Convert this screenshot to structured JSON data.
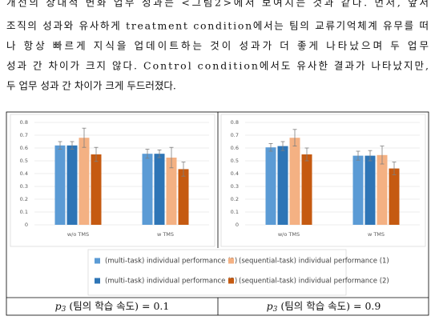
{
  "text_lines": [
    "개선의 상대적 변화 업무 성과는 <그림2>에서 보여지는 것과 같다. 먼저, 앞서",
    "조직의 성과와 유사하게 treatment condition에서는 팀의 교류기억체계 유무를 떠",
    "나 항상 빠르게 지식을 업데이트하는 것이 성과가 더 좋게 나타났으며 두 업무",
    "성과 간 차이가 크지 않다. Control condition에서도 유사한 결과가 나타났지만,",
    "두 업무 성과 간 차이가 크게 두드러졌다."
  ],
  "chart_data": [
    {
      "type": "bar",
      "categories": [
        "w/o TMS",
        "w TMS"
      ],
      "ylim": [
        0,
        0.8
      ],
      "yticks": [
        0,
        0.1,
        0.2,
        0.3,
        0.4,
        0.5,
        0.6,
        0.7,
        0.8
      ],
      "grid": true,
      "series": [
        {
          "name": "(multi-task) individual performance (1)",
          "color": "#5b9bd5",
          "values": [
            0.62,
            0.555
          ],
          "errors": [
            0.03,
            0.035
          ]
        },
        {
          "name": "(multi-task) individual performance (2)",
          "color": "#2e75b6",
          "values": [
            0.62,
            0.555
          ],
          "errors": [
            0.03,
            0.03
          ]
        },
        {
          "name": "(sequential-task) individual performance (1)",
          "color": "#f4b183",
          "values": [
            0.68,
            0.525
          ],
          "errors": [
            0.075,
            0.08
          ]
        },
        {
          "name": "(sequential-task) individual performance (2)",
          "color": "#c55a11",
          "values": [
            0.55,
            0.435
          ],
          "errors": [
            0.055,
            0.055
          ]
        }
      ]
    },
    {
      "type": "bar",
      "categories": [
        "w/o TMS",
        "w TMS"
      ],
      "ylim": [
        0,
        0.8
      ],
      "yticks": [
        0,
        0.1,
        0.2,
        0.3,
        0.4,
        0.5,
        0.6,
        0.7,
        0.8
      ],
      "grid": true,
      "series": [
        {
          "name": "(multi-task) individual performance (1)",
          "color": "#5b9bd5",
          "values": [
            0.605,
            0.54
          ],
          "errors": [
            0.03,
            0.035
          ]
        },
        {
          "name": "(multi-task) individual performance (2)",
          "color": "#2e75b6",
          "values": [
            0.615,
            0.54
          ],
          "errors": [
            0.035,
            0.04
          ]
        },
        {
          "name": "(sequential-task) individual performance (1)",
          "color": "#f4b183",
          "values": [
            0.68,
            0.545
          ],
          "errors": [
            0.065,
            0.07
          ]
        },
        {
          "name": "(sequential-task) individual performance (2)",
          "color": "#c55a11",
          "values": [
            0.55,
            0.44
          ],
          "errors": [
            0.05,
            0.05
          ]
        }
      ]
    }
  ],
  "captions": [
    {
      "symbol": "p",
      "subscript": "3",
      "text": " (팀의 학습 속도) = 0.1"
    },
    {
      "symbol": "p",
      "subscript": "3",
      "text": " (팀의 학습 속도) = 0.9"
    }
  ]
}
